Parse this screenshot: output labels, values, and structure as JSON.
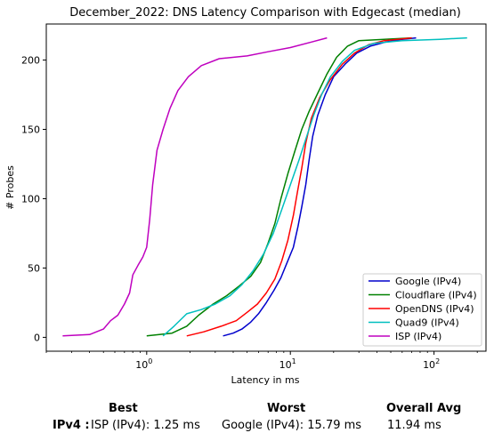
{
  "chart_data": {
    "type": "line",
    "title": "December_2022: DNS Latency Comparison with Edgecast (median)",
    "xlabel": "Latency in ms",
    "ylabel": "# Probes",
    "xscale": "log",
    "xlim": [
      0.2,
      230
    ],
    "ylim": [
      -10,
      226
    ],
    "x_ticks": [
      {
        "value": 1,
        "label": "10^0"
      },
      {
        "value": 10,
        "label": "10^1"
      },
      {
        "value": 100,
        "label": "10^2"
      }
    ],
    "y_ticks": [
      0,
      50,
      100,
      150,
      200
    ],
    "legend_position": "bottom-right",
    "grid": false,
    "series": [
      {
        "name": "Google (IPv4)",
        "color": "#0000cc",
        "points": [
          [
            3.4,
            1
          ],
          [
            4.0,
            3
          ],
          [
            4.6,
            6
          ],
          [
            5.3,
            11
          ],
          [
            6.0,
            17
          ],
          [
            6.8,
            25
          ],
          [
            7.7,
            34
          ],
          [
            8.6,
            43
          ],
          [
            9.5,
            54
          ],
          [
            10.5,
            65
          ],
          [
            11.3,
            80
          ],
          [
            12.0,
            94
          ],
          [
            12.8,
            110
          ],
          [
            13.5,
            128
          ],
          [
            14.3,
            145
          ],
          [
            15.5,
            160
          ],
          [
            17.5,
            175
          ],
          [
            20.0,
            188
          ],
          [
            24.0,
            197
          ],
          [
            29.0,
            205
          ],
          [
            36.0,
            210
          ],
          [
            46.0,
            213
          ],
          [
            60.0,
            215
          ],
          [
            75.0,
            216
          ]
        ]
      },
      {
        "name": "Cloudflare (IPv4)",
        "color": "#008000",
        "points": [
          [
            1.0,
            1
          ],
          [
            1.5,
            3
          ],
          [
            1.9,
            8
          ],
          [
            2.3,
            16
          ],
          [
            2.9,
            24
          ],
          [
            3.6,
            30
          ],
          [
            4.4,
            37
          ],
          [
            5.3,
            44
          ],
          [
            6.2,
            54
          ],
          [
            7.0,
            68
          ],
          [
            7.8,
            82
          ],
          [
            8.6,
            100
          ],
          [
            9.6,
            118
          ],
          [
            10.8,
            135
          ],
          [
            12.0,
            150
          ],
          [
            13.5,
            163
          ],
          [
            15.5,
            176
          ],
          [
            18.0,
            190
          ],
          [
            21.0,
            202
          ],
          [
            25.0,
            210
          ],
          [
            30.0,
            214
          ],
          [
            45.0,
            215
          ],
          [
            70.0,
            216
          ]
        ]
      },
      {
        "name": "OpenDNS (IPv4)",
        "color": "#ff0000",
        "points": [
          [
            1.9,
            1
          ],
          [
            2.5,
            4
          ],
          [
            3.3,
            8
          ],
          [
            4.2,
            12
          ],
          [
            5.0,
            18
          ],
          [
            5.9,
            24
          ],
          [
            6.8,
            32
          ],
          [
            7.8,
            42
          ],
          [
            8.7,
            55
          ],
          [
            9.6,
            70
          ],
          [
            10.5,
            88
          ],
          [
            11.2,
            105
          ],
          [
            12.0,
            122
          ],
          [
            12.8,
            140
          ],
          [
            14.0,
            158
          ],
          [
            16.0,
            173
          ],
          [
            19.0,
            186
          ],
          [
            23.0,
            197
          ],
          [
            28.0,
            205
          ],
          [
            35.0,
            211
          ],
          [
            45.0,
            214
          ],
          [
            70.0,
            216
          ]
        ]
      },
      {
        "name": "Quad9 (IPv4)",
        "color": "#00bfbf",
        "points": [
          [
            1.3,
            1
          ],
          [
            1.55,
            8
          ],
          [
            1.9,
            17
          ],
          [
            2.4,
            20
          ],
          [
            3.0,
            24
          ],
          [
            3.8,
            30
          ],
          [
            4.6,
            38
          ],
          [
            5.5,
            48
          ],
          [
            6.5,
            60
          ],
          [
            7.6,
            75
          ],
          [
            8.7,
            92
          ],
          [
            10.0,
            110
          ],
          [
            11.5,
            128
          ],
          [
            13.0,
            145
          ],
          [
            14.5,
            160
          ],
          [
            16.5,
            175
          ],
          [
            19.0,
            188
          ],
          [
            23.0,
            199
          ],
          [
            28.0,
            207
          ],
          [
            38.0,
            212
          ],
          [
            60.0,
            214
          ],
          [
            110.0,
            215
          ],
          [
            170.0,
            216
          ]
        ]
      },
      {
        "name": "ISP (IPv4)",
        "color": "#bf00bf",
        "points": [
          [
            0.26,
            1
          ],
          [
            0.4,
            2
          ],
          [
            0.5,
            6
          ],
          [
            0.56,
            12
          ],
          [
            0.63,
            16
          ],
          [
            0.7,
            24
          ],
          [
            0.76,
            32
          ],
          [
            0.8,
            45
          ],
          [
            0.87,
            52
          ],
          [
            0.94,
            58
          ],
          [
            1.0,
            65
          ],
          [
            1.05,
            85
          ],
          [
            1.1,
            110
          ],
          [
            1.18,
            135
          ],
          [
            1.3,
            150
          ],
          [
            1.45,
            165
          ],
          [
            1.65,
            178
          ],
          [
            1.95,
            188
          ],
          [
            2.4,
            196
          ],
          [
            3.2,
            201
          ],
          [
            5.0,
            203
          ],
          [
            7.0,
            206
          ],
          [
            10.0,
            209
          ],
          [
            14.0,
            213
          ],
          [
            18.0,
            216
          ]
        ]
      }
    ]
  },
  "summary": {
    "headers": {
      "best": "Best",
      "worst": "Worst",
      "avg": "Overall Avg"
    },
    "row_label": "IPv4 :",
    "best": "ISP (IPv4): 1.25 ms",
    "worst": "Google (IPv4): 15.79 ms",
    "avg": "11.94 ms"
  }
}
